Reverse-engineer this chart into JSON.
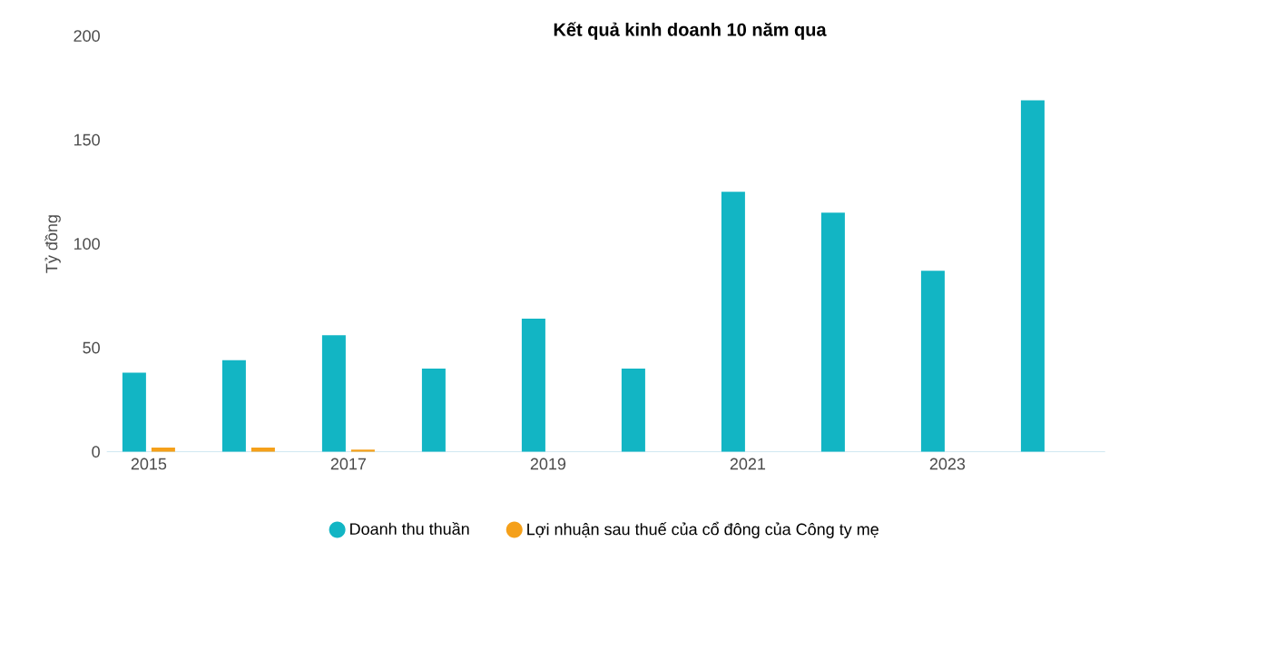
{
  "chart_data": {
    "type": "bar",
    "title": "Kết quả kinh doanh 10 năm qua",
    "ylabel": "Tỷ đồng",
    "categories": [
      "2015",
      null,
      "2017",
      null,
      "2019",
      null,
      "2021",
      null,
      "2023",
      null
    ],
    "series": [
      {
        "name": "Doanh thu thuần",
        "color": "#12b5c4",
        "values": [
          38,
          44,
          56,
          40,
          64,
          40,
          125,
          115,
          87,
          169
        ]
      },
      {
        "name": "Lợi nhuận sau thuế của cổ đông của Công ty mẹ",
        "color": "#f5a01a",
        "values": [
          2,
          2,
          1,
          0,
          0,
          0,
          0,
          0,
          0,
          0
        ]
      }
    ],
    "ylim": [
      0,
      200
    ],
    "yticks": [
      0,
      50,
      100,
      150,
      200
    ],
    "grid": false,
    "legend": "bottom"
  }
}
